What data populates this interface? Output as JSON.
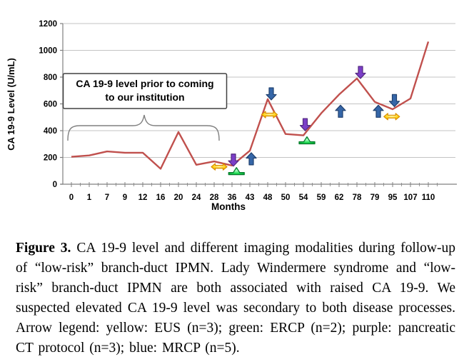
{
  "caption": {
    "label": "Figure 3.",
    "text": "CA 19-9 level and different imaging modalities during follow-up of “low-risk” branch-duct IPMN. Lady Windermere syndrome and “low-risk” branch-duct IPMN are both associated with raised CA 19-9. We suspected elevated CA 19-9 level was secondary to both disease processes. Arrow legend: yellow: EUS (n=3); green: ERCP (n=2); purple: pancreatic CT protocol (n=3); blue: MRCP (n=5)."
  },
  "chart_data": {
    "type": "line",
    "title": "",
    "xlabel": "Months",
    "ylabel": "CA 19-9 Level (U/mL)",
    "ylim": [
      0,
      1200
    ],
    "ytick_interval": 200,
    "grid": true,
    "legend_position": "none",
    "categories": [
      "0",
      "1",
      "7",
      "9",
      "12",
      "16",
      "20",
      "24",
      "28",
      "36",
      "43",
      "48",
      "50",
      "54",
      "59",
      "62",
      "78",
      "79",
      "95",
      "107",
      "110"
    ],
    "series": [
      {
        "name": "CA 19-9 level",
        "values": [
          205,
          215,
          245,
          235,
          235,
          115,
          390,
          145,
          170,
          140,
          250,
          635,
          375,
          365,
          530,
          670,
          790,
          615,
          560,
          640,
          1065
        ],
        "color": "#C0504D"
      }
    ],
    "annotation": {
      "lines": [
        "CA 19-9 level prior to coming",
        "to our institution"
      ],
      "brace_from_month": "0",
      "brace_to_month": "28"
    },
    "arrows": [
      {
        "color": "yellow",
        "modality": "EUS",
        "xi": 8.28,
        "value": 130,
        "dir": "h"
      },
      {
        "color": "green",
        "modality": "ERCP",
        "xi": 9.25,
        "value": 90,
        "dir": "up"
      },
      {
        "color": "purple",
        "modality": "pancreatic CT protocol",
        "xi": 9.08,
        "value": 180,
        "dir": "down"
      },
      {
        "color": "blue",
        "modality": "MRCP",
        "xi": 10.08,
        "value": 190,
        "dir": "up"
      },
      {
        "color": "blue",
        "modality": "MRCP",
        "xi": 11.2,
        "value": 675,
        "dir": "down"
      },
      {
        "color": "yellow",
        "modality": "EUS",
        "xi": 11.1,
        "value": 520,
        "dir": "h"
      },
      {
        "color": "purple",
        "modality": "pancreatic CT protocol",
        "xi": 13.1,
        "value": 445,
        "dir": "down"
      },
      {
        "color": "green",
        "modality": "ERCP",
        "xi": 13.2,
        "value": 320,
        "dir": "up"
      },
      {
        "color": "blue",
        "modality": "MRCP",
        "xi": 15.08,
        "value": 545,
        "dir": "up"
      },
      {
        "color": "purple",
        "modality": "pancreatic CT protocol",
        "xi": 16.2,
        "value": 835,
        "dir": "down"
      },
      {
        "color": "blue",
        "modality": "MRCP",
        "xi": 17.2,
        "value": 545,
        "dir": "up"
      },
      {
        "color": "blue",
        "modality": "MRCP",
        "xi": 18.1,
        "value": 625,
        "dir": "down"
      },
      {
        "color": "yellow",
        "modality": "EUS",
        "xi": 17.95,
        "value": 505,
        "dir": "h"
      }
    ],
    "arrow_legend": {
      "yellow": "EUS (n=3)",
      "green": "ERCP (n=2)",
      "purple": "pancreatic CT protocol (n=3)",
      "blue": "MRCP (n=5)"
    },
    "colors": {
      "line": "#C0504D",
      "grid": "#C3C3C3",
      "axis": "#808080",
      "annotation_border": "#404040",
      "yellow_fill": "#FFD215",
      "yellow_stroke": "#D98E00",
      "green_fill": "#22DD55",
      "green_stroke": "#067A2B",
      "purple_fill": "#7B3EC8",
      "purple_stroke": "#53297F",
      "blue_fill": "#3566A8",
      "blue_stroke": "#20406E"
    }
  }
}
